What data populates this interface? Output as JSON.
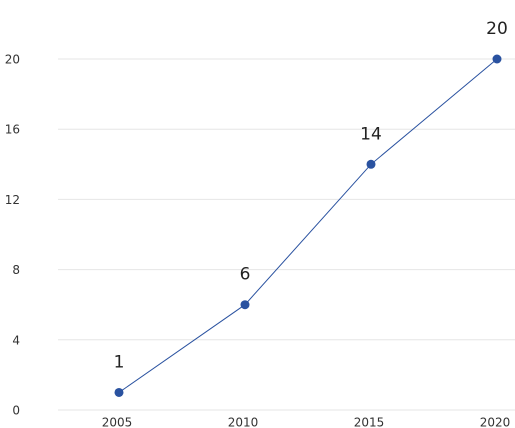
{
  "chart_data": {
    "type": "line",
    "categories": [
      "2005",
      "2010",
      "2015",
      "2020"
    ],
    "values": [
      1,
      6,
      14,
      20
    ],
    "color": "#2a52a0",
    "ylim": [
      0,
      20
    ],
    "yticks": [
      0,
      4,
      8,
      12,
      16,
      20
    ],
    "grid": true
  }
}
